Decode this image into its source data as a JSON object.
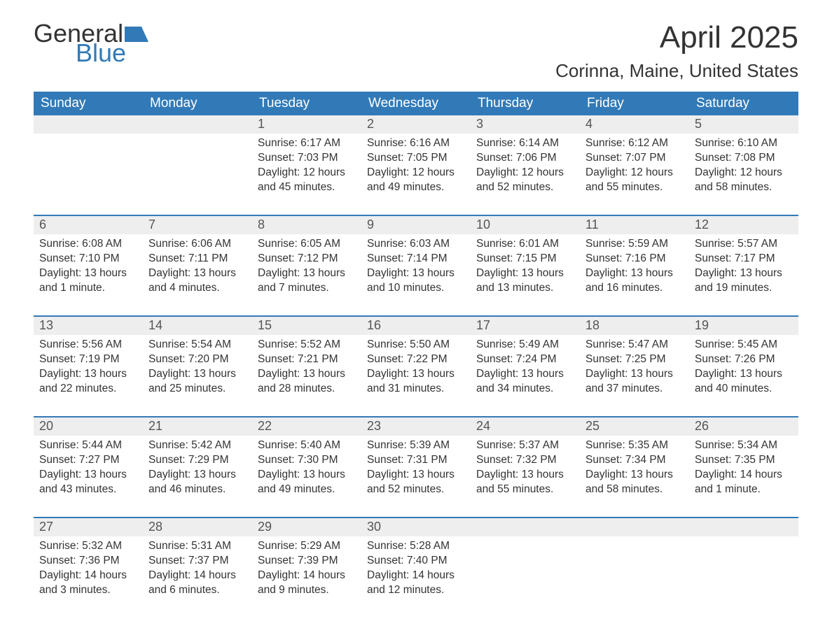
{
  "logo": {
    "text1": "General",
    "text2": "Blue",
    "shape_color": "#327ab7"
  },
  "title": "April 2025",
  "location": "Corinna, Maine, United States",
  "colors": {
    "header_bg": "#327ab7",
    "header_text": "#ffffff",
    "daynum_bg": "#eeeeee",
    "body_text": "#333333",
    "week_border": "#327ab7"
  },
  "weekdays": [
    "Sunday",
    "Monday",
    "Tuesday",
    "Wednesday",
    "Thursday",
    "Friday",
    "Saturday"
  ],
  "weeks": [
    [
      {
        "n": "",
        "sr": "",
        "ss": "",
        "d1": "",
        "d2": ""
      },
      {
        "n": "",
        "sr": "",
        "ss": "",
        "d1": "",
        "d2": ""
      },
      {
        "n": "1",
        "sr": "Sunrise: 6:17 AM",
        "ss": "Sunset: 7:03 PM",
        "d1": "Daylight: 12 hours",
        "d2": "and 45 minutes."
      },
      {
        "n": "2",
        "sr": "Sunrise: 6:16 AM",
        "ss": "Sunset: 7:05 PM",
        "d1": "Daylight: 12 hours",
        "d2": "and 49 minutes."
      },
      {
        "n": "3",
        "sr": "Sunrise: 6:14 AM",
        "ss": "Sunset: 7:06 PM",
        "d1": "Daylight: 12 hours",
        "d2": "and 52 minutes."
      },
      {
        "n": "4",
        "sr": "Sunrise: 6:12 AM",
        "ss": "Sunset: 7:07 PM",
        "d1": "Daylight: 12 hours",
        "d2": "and 55 minutes."
      },
      {
        "n": "5",
        "sr": "Sunrise: 6:10 AM",
        "ss": "Sunset: 7:08 PM",
        "d1": "Daylight: 12 hours",
        "d2": "and 58 minutes."
      }
    ],
    [
      {
        "n": "6",
        "sr": "Sunrise: 6:08 AM",
        "ss": "Sunset: 7:10 PM",
        "d1": "Daylight: 13 hours",
        "d2": "and 1 minute."
      },
      {
        "n": "7",
        "sr": "Sunrise: 6:06 AM",
        "ss": "Sunset: 7:11 PM",
        "d1": "Daylight: 13 hours",
        "d2": "and 4 minutes."
      },
      {
        "n": "8",
        "sr": "Sunrise: 6:05 AM",
        "ss": "Sunset: 7:12 PM",
        "d1": "Daylight: 13 hours",
        "d2": "and 7 minutes."
      },
      {
        "n": "9",
        "sr": "Sunrise: 6:03 AM",
        "ss": "Sunset: 7:14 PM",
        "d1": "Daylight: 13 hours",
        "d2": "and 10 minutes."
      },
      {
        "n": "10",
        "sr": "Sunrise: 6:01 AM",
        "ss": "Sunset: 7:15 PM",
        "d1": "Daylight: 13 hours",
        "d2": "and 13 minutes."
      },
      {
        "n": "11",
        "sr": "Sunrise: 5:59 AM",
        "ss": "Sunset: 7:16 PM",
        "d1": "Daylight: 13 hours",
        "d2": "and 16 minutes."
      },
      {
        "n": "12",
        "sr": "Sunrise: 5:57 AM",
        "ss": "Sunset: 7:17 PM",
        "d1": "Daylight: 13 hours",
        "d2": "and 19 minutes."
      }
    ],
    [
      {
        "n": "13",
        "sr": "Sunrise: 5:56 AM",
        "ss": "Sunset: 7:19 PM",
        "d1": "Daylight: 13 hours",
        "d2": "and 22 minutes."
      },
      {
        "n": "14",
        "sr": "Sunrise: 5:54 AM",
        "ss": "Sunset: 7:20 PM",
        "d1": "Daylight: 13 hours",
        "d2": "and 25 minutes."
      },
      {
        "n": "15",
        "sr": "Sunrise: 5:52 AM",
        "ss": "Sunset: 7:21 PM",
        "d1": "Daylight: 13 hours",
        "d2": "and 28 minutes."
      },
      {
        "n": "16",
        "sr": "Sunrise: 5:50 AM",
        "ss": "Sunset: 7:22 PM",
        "d1": "Daylight: 13 hours",
        "d2": "and 31 minutes."
      },
      {
        "n": "17",
        "sr": "Sunrise: 5:49 AM",
        "ss": "Sunset: 7:24 PM",
        "d1": "Daylight: 13 hours",
        "d2": "and 34 minutes."
      },
      {
        "n": "18",
        "sr": "Sunrise: 5:47 AM",
        "ss": "Sunset: 7:25 PM",
        "d1": "Daylight: 13 hours",
        "d2": "and 37 minutes."
      },
      {
        "n": "19",
        "sr": "Sunrise: 5:45 AM",
        "ss": "Sunset: 7:26 PM",
        "d1": "Daylight: 13 hours",
        "d2": "and 40 minutes."
      }
    ],
    [
      {
        "n": "20",
        "sr": "Sunrise: 5:44 AM",
        "ss": "Sunset: 7:27 PM",
        "d1": "Daylight: 13 hours",
        "d2": "and 43 minutes."
      },
      {
        "n": "21",
        "sr": "Sunrise: 5:42 AM",
        "ss": "Sunset: 7:29 PM",
        "d1": "Daylight: 13 hours",
        "d2": "and 46 minutes."
      },
      {
        "n": "22",
        "sr": "Sunrise: 5:40 AM",
        "ss": "Sunset: 7:30 PM",
        "d1": "Daylight: 13 hours",
        "d2": "and 49 minutes."
      },
      {
        "n": "23",
        "sr": "Sunrise: 5:39 AM",
        "ss": "Sunset: 7:31 PM",
        "d1": "Daylight: 13 hours",
        "d2": "and 52 minutes."
      },
      {
        "n": "24",
        "sr": "Sunrise: 5:37 AM",
        "ss": "Sunset: 7:32 PM",
        "d1": "Daylight: 13 hours",
        "d2": "and 55 minutes."
      },
      {
        "n": "25",
        "sr": "Sunrise: 5:35 AM",
        "ss": "Sunset: 7:34 PM",
        "d1": "Daylight: 13 hours",
        "d2": "and 58 minutes."
      },
      {
        "n": "26",
        "sr": "Sunrise: 5:34 AM",
        "ss": "Sunset: 7:35 PM",
        "d1": "Daylight: 14 hours",
        "d2": "and 1 minute."
      }
    ],
    [
      {
        "n": "27",
        "sr": "Sunrise: 5:32 AM",
        "ss": "Sunset: 7:36 PM",
        "d1": "Daylight: 14 hours",
        "d2": "and 3 minutes."
      },
      {
        "n": "28",
        "sr": "Sunrise: 5:31 AM",
        "ss": "Sunset: 7:37 PM",
        "d1": "Daylight: 14 hours",
        "d2": "and 6 minutes."
      },
      {
        "n": "29",
        "sr": "Sunrise: 5:29 AM",
        "ss": "Sunset: 7:39 PM",
        "d1": "Daylight: 14 hours",
        "d2": "and 9 minutes."
      },
      {
        "n": "30",
        "sr": "Sunrise: 5:28 AM",
        "ss": "Sunset: 7:40 PM",
        "d1": "Daylight: 14 hours",
        "d2": "and 12 minutes."
      },
      {
        "n": "",
        "sr": "",
        "ss": "",
        "d1": "",
        "d2": ""
      },
      {
        "n": "",
        "sr": "",
        "ss": "",
        "d1": "",
        "d2": ""
      },
      {
        "n": "",
        "sr": "",
        "ss": "",
        "d1": "",
        "d2": ""
      }
    ]
  ]
}
